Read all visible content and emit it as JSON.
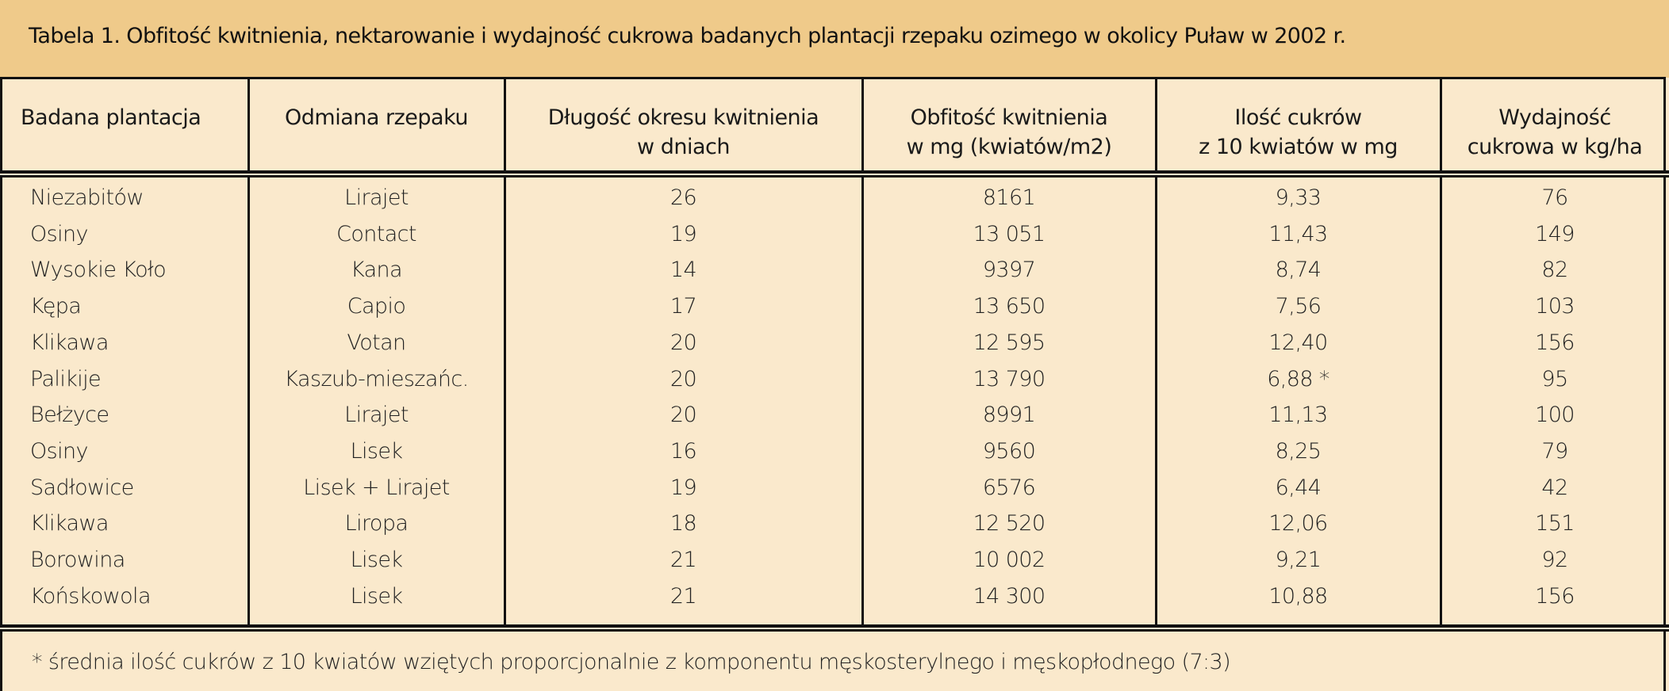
{
  "title": "Tabela 1. Obfitość kwitnienia, nektarowanie i wydajność cukrowa badanych plantacji rzepaku ozimego w okolicy Puław w 2002 r.",
  "colors": {
    "title_band": "#efca8a",
    "body": "#fae9cc",
    "lines": "#111111"
  },
  "columns": [
    {
      "line1": "Badana plantacja",
      "line2": ""
    },
    {
      "line1": "Odmiana rzepaku",
      "line2": ""
    },
    {
      "line1": "Długość okresu kwitnienia",
      "line2": "w dniach"
    },
    {
      "line1": "Obfitość kwitnienia",
      "line2": "w mg (kwiatów/m2)"
    },
    {
      "line1": "Ilość cukrów",
      "line2": "z 10 kwiatów w mg"
    },
    {
      "line1": "Wydajność",
      "line2": "cukrowa w kg/ha"
    }
  ],
  "rows": [
    [
      "Niezabitów",
      "Lirajet",
      "26",
      "8161",
      "9,33",
      "76"
    ],
    [
      "Osiny",
      "Contact",
      "19",
      "13 051",
      "11,43",
      "149"
    ],
    [
      "Wysokie Koło",
      "Kana",
      "14",
      "9397",
      "8,74",
      "82"
    ],
    [
      "Kępa",
      "Capio",
      "17",
      "13 650",
      "7,56",
      "103"
    ],
    [
      "Klikawa",
      "Votan",
      "20",
      "12 595",
      "12,40",
      "156"
    ],
    [
      "Palikije",
      "Kaszub-mieszańc.",
      "20",
      "13 790",
      "6,88 *",
      "95"
    ],
    [
      "Bełżyce",
      "Lirajet",
      "20",
      "8991",
      "11,13",
      "100"
    ],
    [
      "Osiny",
      "Lisek",
      "16",
      "9560",
      "8,25",
      "79"
    ],
    [
      "Sadłowice",
      "Lisek + Lirajet",
      "19",
      "6576",
      "6,44",
      "42"
    ],
    [
      "Klikawa",
      "Liropa",
      "18",
      "12 520",
      "12,06",
      "151"
    ],
    [
      "Borowina",
      "Lisek",
      "21",
      "10 002",
      "9,21",
      "92"
    ],
    [
      "Końskowola",
      "Lisek",
      "21",
      "14 300",
      "10,88",
      "156"
    ]
  ],
  "footnote": "* średnia ilość cukrów z 10 kwiatów wziętych proporcjonalnie z komponentu męskosterylnego i męskopłodnego (7:3)"
}
